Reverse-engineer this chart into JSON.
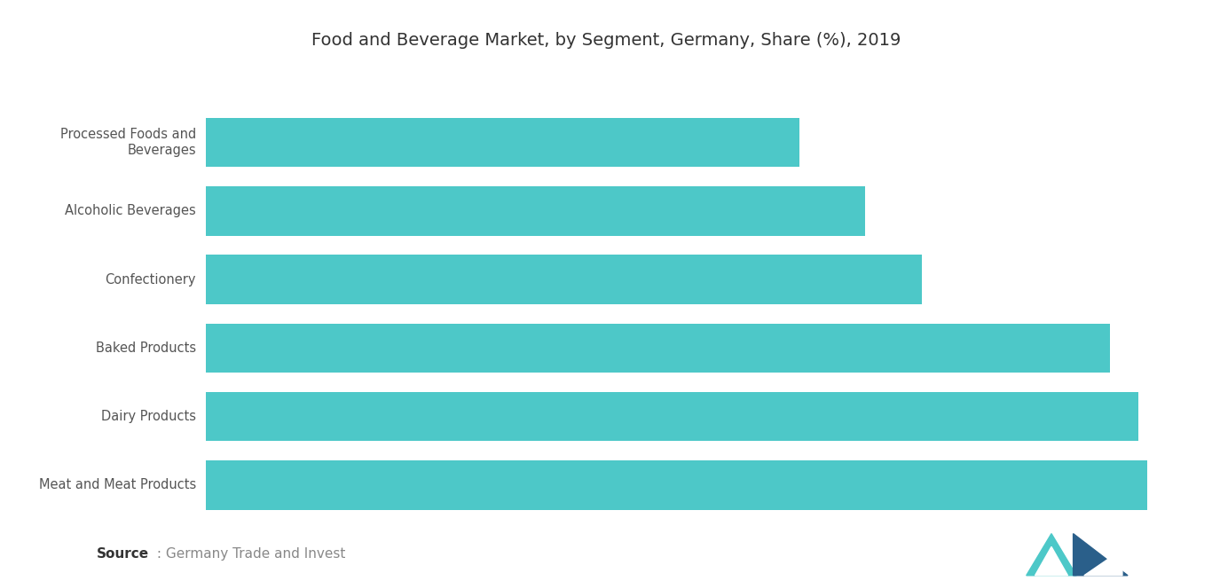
{
  "title": "Food and Beverage Market, by Segment, Germany, Share (%), 2019",
  "categories": [
    "Meat and Meat Products",
    "Dairy Products",
    "Baked Products",
    "Confectionery",
    "Alcoholic Beverages",
    "Processed Foods and\nBeverages"
  ],
  "values": [
    100,
    99,
    96,
    76,
    70,
    63
  ],
  "bar_color": "#4DC8C8",
  "background_color": "#ffffff",
  "label_color": "#555555",
  "title_color": "#333333",
  "source_bold": "Source",
  "source_rest": " : Germany Trade and Invest",
  "title_fontsize": 14,
  "label_fontsize": 10.5,
  "source_fontsize": 11
}
